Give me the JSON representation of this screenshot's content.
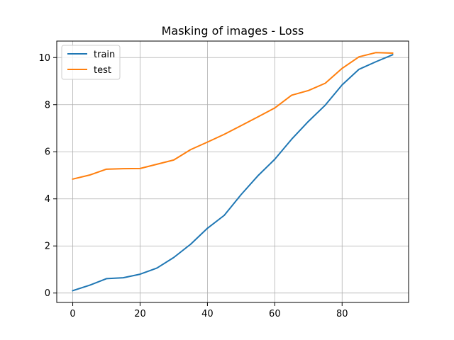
{
  "chart_data": {
    "type": "line",
    "title": "Masking of images - Loss",
    "xlabel": "",
    "ylabel": "",
    "xlim": [
      -4.75,
      99.75
    ],
    "ylim": [
      -0.4,
      10.7
    ],
    "xticks": [
      0,
      20,
      40,
      60,
      80
    ],
    "yticks": [
      0,
      2,
      4,
      6,
      8,
      10
    ],
    "grid": true,
    "legend_position": "top-left",
    "x": [
      0,
      5,
      10,
      15,
      20,
      25,
      30,
      35,
      40,
      45,
      50,
      55,
      60,
      65,
      70,
      75,
      80,
      85,
      90,
      95
    ],
    "series": [
      {
        "name": "train",
        "color": "#1f77b4",
        "values": [
          0.1,
          0.33,
          0.61,
          0.65,
          0.8,
          1.06,
          1.51,
          2.07,
          2.75,
          3.3,
          4.18,
          4.98,
          5.68,
          6.53,
          7.29,
          7.98,
          8.84,
          9.5,
          9.82,
          10.12
        ]
      },
      {
        "name": "test",
        "color": "#ff7f0e",
        "values": [
          4.84,
          5.01,
          5.26,
          5.28,
          5.29,
          5.47,
          5.65,
          6.09,
          6.41,
          6.74,
          7.11,
          7.48,
          7.86,
          8.4,
          8.6,
          8.91,
          9.54,
          10.03,
          10.21,
          10.19
        ]
      }
    ]
  }
}
